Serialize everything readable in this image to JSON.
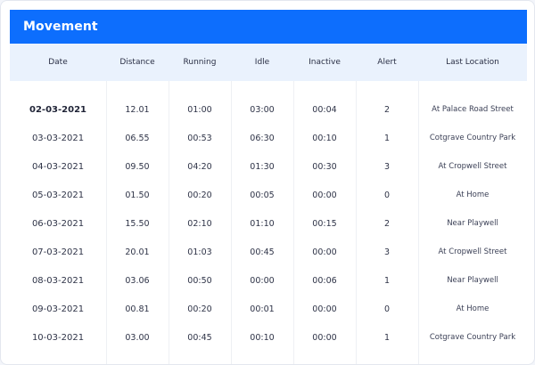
{
  "panel": {
    "title": "Movement"
  },
  "table": {
    "columns": [
      "Date",
      "Distance",
      "Running",
      "Idle",
      "Inactive",
      "Alert",
      "Last Location"
    ],
    "rows": [
      [
        "02-03-2021",
        "12.01",
        "01:00",
        "03:00",
        "00:04",
        "2",
        "At Palace Road Street"
      ],
      [
        "03-03-2021",
        "06.55",
        "00:53",
        "06:30",
        "00:10",
        "1",
        "Cotgrave Country Park"
      ],
      [
        "04-03-2021",
        "09.50",
        "04:20",
        "01:30",
        "00:30",
        "3",
        "At Cropwell Street"
      ],
      [
        "05-03-2021",
        "01.50",
        "00:20",
        "00:05",
        "00:00",
        "0",
        "At Home"
      ],
      [
        "06-03-2021",
        "15.50",
        "02:10",
        "01:10",
        "00:15",
        "2",
        "Near Playwell"
      ],
      [
        "07-03-2021",
        "20.01",
        "01:03",
        "00:45",
        "00:00",
        "3",
        "At Cropwell Street"
      ],
      [
        "08-03-2021",
        "03.06",
        "00:50",
        "00:00",
        "00:06",
        "1",
        "Near Playwell"
      ],
      [
        "09-03-2021",
        "00.81",
        "00:20",
        "00:01",
        "00:00",
        "0",
        "At Home"
      ],
      [
        "10-03-2021",
        "03.00",
        "00:45",
        "00:10",
        "00:00",
        "1",
        "Cotgrave Country Park"
      ]
    ]
  }
}
